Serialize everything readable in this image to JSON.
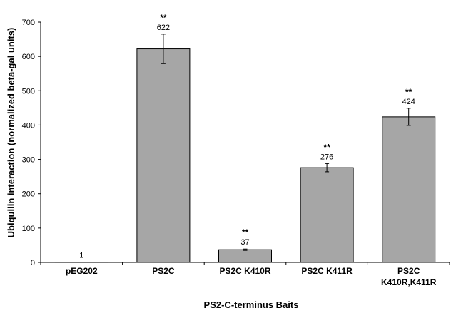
{
  "chart_data": {
    "type": "bar",
    "title": "",
    "xlabel": "PS2-C-terminus Baits",
    "ylabel": "Ubiquilin interaction (normalized beta-gal units)",
    "ylim": [
      0,
      700
    ],
    "yticks": [
      0,
      100,
      200,
      300,
      400,
      500,
      600,
      700
    ],
    "grid": false,
    "bar_color": "#a6a6a6",
    "categories": [
      [
        "pEG202"
      ],
      [
        "PS2C"
      ],
      [
        "PS2C K410R"
      ],
      [
        "PS2C K411R"
      ],
      [
        "PS2C",
        "K410R,K411R"
      ]
    ],
    "values": [
      1,
      622,
      37,
      276,
      424
    ],
    "errors": [
      0,
      43,
      2,
      12,
      25
    ],
    "value_labels": [
      "1",
      "622",
      "37",
      "276",
      "424"
    ],
    "significance": [
      "",
      "**",
      "**",
      "**",
      "**"
    ]
  }
}
